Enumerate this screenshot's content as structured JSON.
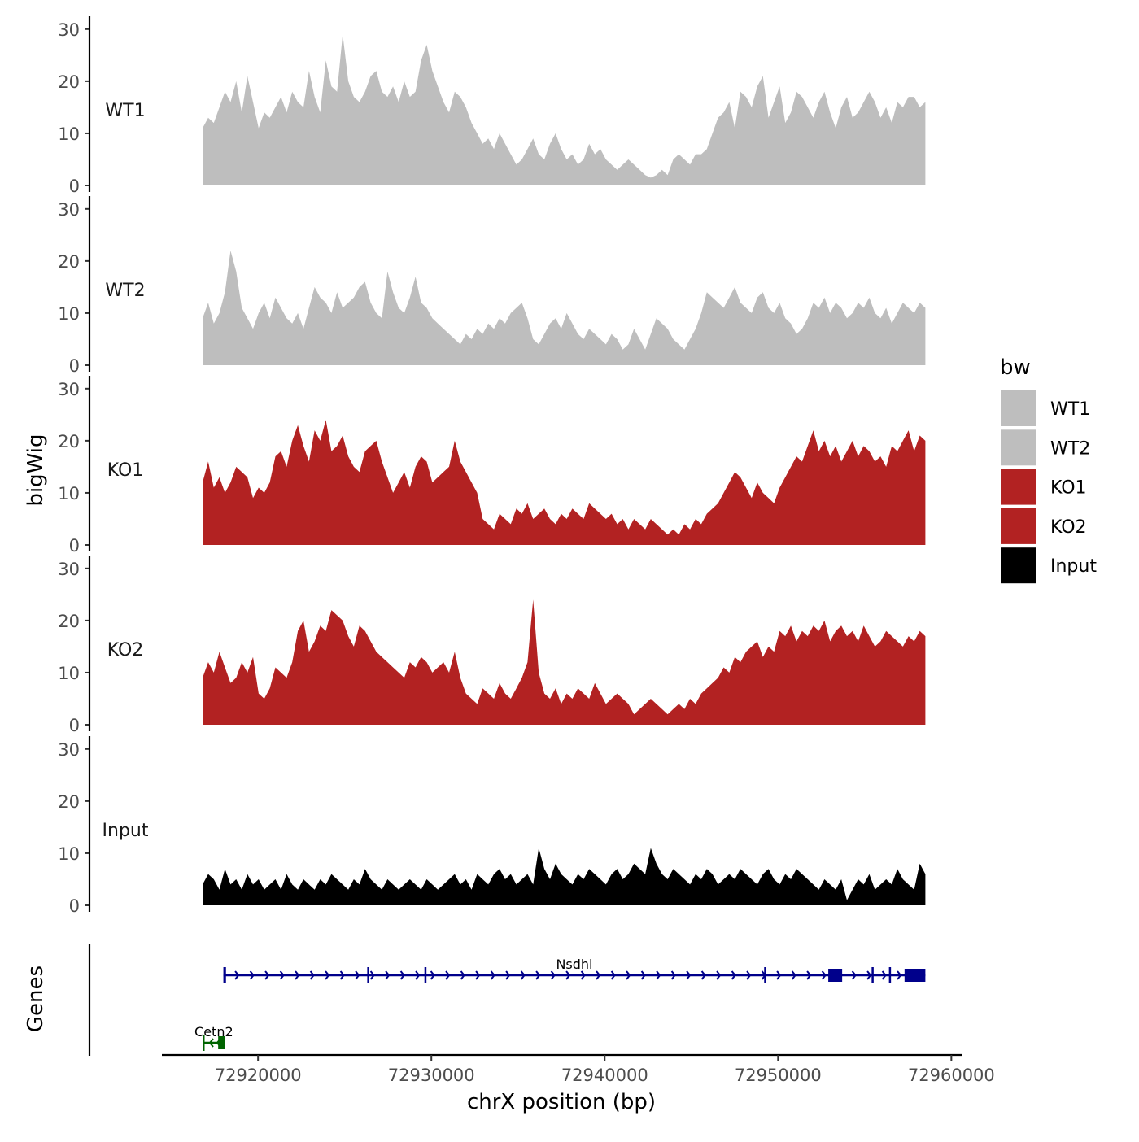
{
  "chart_data": {
    "type": "area",
    "title": "",
    "xlabel": "chrX position (bp)",
    "ylabel": "bigWig",
    "genes_label": "Genes",
    "xlim": [
      72914500,
      72960500
    ],
    "x_ticks": [
      72920000,
      72930000,
      72940000,
      72950000,
      72960000
    ],
    "x_tick_labels": [
      "72920000",
      "72930000",
      "72940000",
      "72950000",
      "72960000"
    ],
    "ylim": [
      0,
      32
    ],
    "y_ticks": [
      0,
      10,
      20,
      30
    ],
    "y_tick_labels": [
      "0",
      "10",
      "20",
      "30"
    ],
    "data_range": [
      72916800,
      72958500
    ],
    "legend": {
      "title": "bw",
      "position": "right",
      "items": [
        {
          "label": "WT1",
          "color": "#bebebe"
        },
        {
          "label": "WT2",
          "color": "#bebebe"
        },
        {
          "label": "KO1",
          "color": "#b22222"
        },
        {
          "label": "KO2",
          "color": "#b22222"
        },
        {
          "label": "Input",
          "color": "#000000"
        }
      ]
    },
    "series": [
      {
        "name": "WT1",
        "color": "#bebebe",
        "values": [
          11,
          13,
          12,
          15,
          18,
          16,
          20,
          14,
          21,
          16,
          11,
          14,
          13,
          15,
          17,
          14,
          18,
          16,
          15,
          22,
          17,
          14,
          24,
          19,
          18,
          29,
          20,
          17,
          16,
          18,
          21,
          22,
          18,
          17,
          19,
          16,
          20,
          17,
          18,
          24,
          27,
          22,
          19,
          16,
          14,
          18,
          17,
          15,
          12,
          10,
          8,
          9,
          7,
          10,
          8,
          6,
          4,
          5,
          7,
          9,
          6,
          5,
          8,
          10,
          7,
          5,
          6,
          4,
          5,
          8,
          6,
          7,
          5,
          4,
          3,
          4,
          5,
          4,
          3,
          2,
          1.5,
          2,
          3,
          2,
          5,
          6,
          5,
          4,
          6,
          6,
          7,
          10,
          13,
          14,
          16,
          11,
          18,
          17,
          15,
          19,
          21,
          13,
          16,
          19,
          12,
          14,
          18,
          17,
          15,
          13,
          16,
          18,
          14,
          11,
          15,
          17,
          13,
          14,
          16,
          18,
          16,
          13,
          15,
          12,
          16,
          15,
          17,
          17,
          15,
          16
        ]
      },
      {
        "name": "WT2",
        "color": "#bebebe",
        "values": [
          9,
          12,
          8,
          10,
          14,
          22,
          18,
          11,
          9,
          7,
          10,
          12,
          9,
          13,
          11,
          9,
          8,
          10,
          7,
          11,
          15,
          13,
          12,
          10,
          14,
          11,
          12,
          13,
          15,
          16,
          12,
          10,
          9,
          18,
          14,
          11,
          10,
          13,
          17,
          12,
          11,
          9,
          8,
          7,
          6,
          5,
          4,
          6,
          5,
          7,
          6,
          8,
          7,
          9,
          8,
          10,
          11,
          12,
          9,
          5,
          4,
          6,
          8,
          9,
          7,
          10,
          8,
          6,
          5,
          7,
          6,
          5,
          4,
          6,
          5,
          3,
          4,
          7,
          5,
          3,
          6,
          9,
          8,
          7,
          5,
          4,
          3,
          5,
          7,
          10,
          14,
          13,
          12,
          11,
          13,
          15,
          12,
          11,
          10,
          13,
          14,
          11,
          10,
          12,
          9,
          8,
          6,
          7,
          9,
          12,
          11,
          13,
          10,
          12,
          11,
          9,
          10,
          12,
          11,
          13,
          10,
          9,
          11,
          8,
          10,
          12,
          11,
          10,
          12,
          11
        ]
      },
      {
        "name": "KO1",
        "color": "#b22222",
        "values": [
          12,
          16,
          11,
          13,
          10,
          12,
          15,
          14,
          13,
          9,
          11,
          10,
          12,
          17,
          18,
          15,
          20,
          23,
          19,
          16,
          22,
          20,
          24,
          18,
          19,
          21,
          17,
          15,
          14,
          18,
          19,
          20,
          16,
          13,
          10,
          12,
          14,
          11,
          15,
          17,
          16,
          12,
          13,
          14,
          15,
          20,
          16,
          14,
          12,
          10,
          5,
          4,
          3,
          6,
          5,
          4,
          7,
          6,
          8,
          5,
          6,
          7,
          5,
          4,
          6,
          5,
          7,
          6,
          5,
          8,
          7,
          6,
          5,
          6,
          4,
          5,
          3,
          5,
          4,
          3,
          5,
          4,
          3,
          2,
          3,
          2,
          4,
          3,
          5,
          4,
          6,
          7,
          8,
          10,
          12,
          14,
          13,
          11,
          9,
          12,
          10,
          9,
          8,
          11,
          13,
          15,
          17,
          16,
          19,
          22,
          18,
          20,
          17,
          19,
          16,
          18,
          20,
          17,
          19,
          18,
          16,
          17,
          15,
          19,
          18,
          20,
          22,
          18,
          21,
          20
        ]
      },
      {
        "name": "KO2",
        "color": "#b22222",
        "values": [
          9,
          12,
          10,
          14,
          11,
          8,
          9,
          12,
          10,
          13,
          6,
          5,
          7,
          11,
          10,
          9,
          12,
          18,
          20,
          14,
          16,
          19,
          18,
          22,
          21,
          20,
          17,
          15,
          19,
          18,
          16,
          14,
          13,
          12,
          11,
          10,
          9,
          12,
          11,
          13,
          12,
          10,
          11,
          12,
          10,
          14,
          9,
          6,
          5,
          4,
          7,
          6,
          5,
          8,
          6,
          5,
          7,
          9,
          12,
          24,
          10,
          6,
          5,
          7,
          4,
          6,
          5,
          7,
          6,
          5,
          8,
          6,
          4,
          5,
          6,
          5,
          4,
          2,
          3,
          4,
          5,
          4,
          3,
          2,
          3,
          4,
          3,
          5,
          4,
          6,
          7,
          8,
          9,
          11,
          10,
          13,
          12,
          14,
          15,
          16,
          13,
          15,
          14,
          18,
          17,
          19,
          16,
          18,
          17,
          19,
          18,
          20,
          16,
          18,
          19,
          17,
          18,
          16,
          19,
          17,
          15,
          16,
          18,
          17,
          16,
          15,
          17,
          16,
          18,
          17
        ]
      },
      {
        "name": "Input",
        "color": "#000000",
        "values": [
          4,
          6,
          5,
          3,
          7,
          4,
          5,
          3,
          6,
          4,
          5,
          3,
          4,
          5,
          3,
          6,
          4,
          3,
          5,
          4,
          3,
          5,
          4,
          6,
          5,
          4,
          3,
          5,
          4,
          7,
          5,
          4,
          3,
          5,
          4,
          3,
          4,
          5,
          4,
          3,
          5,
          4,
          3,
          4,
          5,
          6,
          4,
          5,
          3,
          6,
          5,
          4,
          6,
          7,
          5,
          6,
          4,
          5,
          6,
          4,
          11,
          7,
          5,
          8,
          6,
          5,
          4,
          6,
          5,
          7,
          6,
          5,
          4,
          6,
          7,
          5,
          6,
          8,
          7,
          6,
          11,
          8,
          6,
          5,
          7,
          6,
          5,
          4,
          6,
          5,
          7,
          6,
          4,
          5,
          6,
          5,
          7,
          6,
          5,
          4,
          6,
          7,
          5,
          4,
          6,
          5,
          7,
          6,
          5,
          4,
          3,
          5,
          4,
          3,
          5,
          1,
          3,
          5,
          4,
          6,
          3,
          4,
          5,
          4,
          7,
          5,
          4,
          3,
          8,
          6
        ]
      }
    ],
    "genes": [
      {
        "name": "Nsdhl",
        "color": "#00008b",
        "strand": "+",
        "start": 72918000,
        "end": 72958500,
        "exons": [
          [
            72918000,
            72918150
          ],
          [
            72926300,
            72926350
          ],
          [
            72929600,
            72929650
          ],
          [
            72949200,
            72949300
          ],
          [
            72952900,
            72953700
          ],
          [
            72955400,
            72955450
          ],
          [
            72956400,
            72956450
          ],
          [
            72957300,
            72958500
          ]
        ]
      },
      {
        "name": "Cetn2",
        "color": "#006400",
        "strand": "-",
        "start": 72916800,
        "end": 72918100,
        "exons": [
          [
            72916800,
            72916900
          ],
          [
            72917700,
            72918100
          ]
        ]
      }
    ]
  }
}
